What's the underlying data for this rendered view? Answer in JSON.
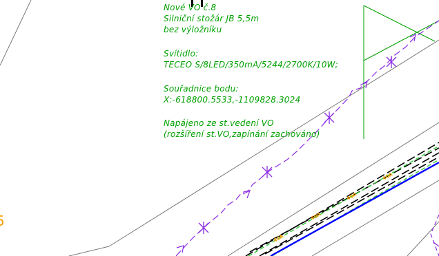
{
  "notes": {
    "line1": "Nové VO č.8",
    "line2": "Silniční stožár JB 5,5m",
    "line3": "bez výložníku",
    "line4": "Svítidlo:",
    "line5": "TECEO S/8LED/350mA/5244/2700K/10W;",
    "line6": "Souřadnice bodu:",
    "line7": "X:-618800.5533,-1109828.3024",
    "line8": "Napájeno ze st.vedení VO",
    "line9": "(rozšíření st.VO,zapínání zachováno)"
  },
  "cable_labels": [
    "40A",
    "40A",
    "40A",
    "40A"
  ],
  "edge_mark": "5",
  "colors": {
    "text": "#00a000",
    "leader": "#00a000",
    "background": "#ffffff",
    "border_line": "#777777",
    "cable_route": "#8a2be2",
    "power_cable": "#0000ff",
    "dashed_green": "#33cc33",
    "label_orange": "#f5a000"
  }
}
